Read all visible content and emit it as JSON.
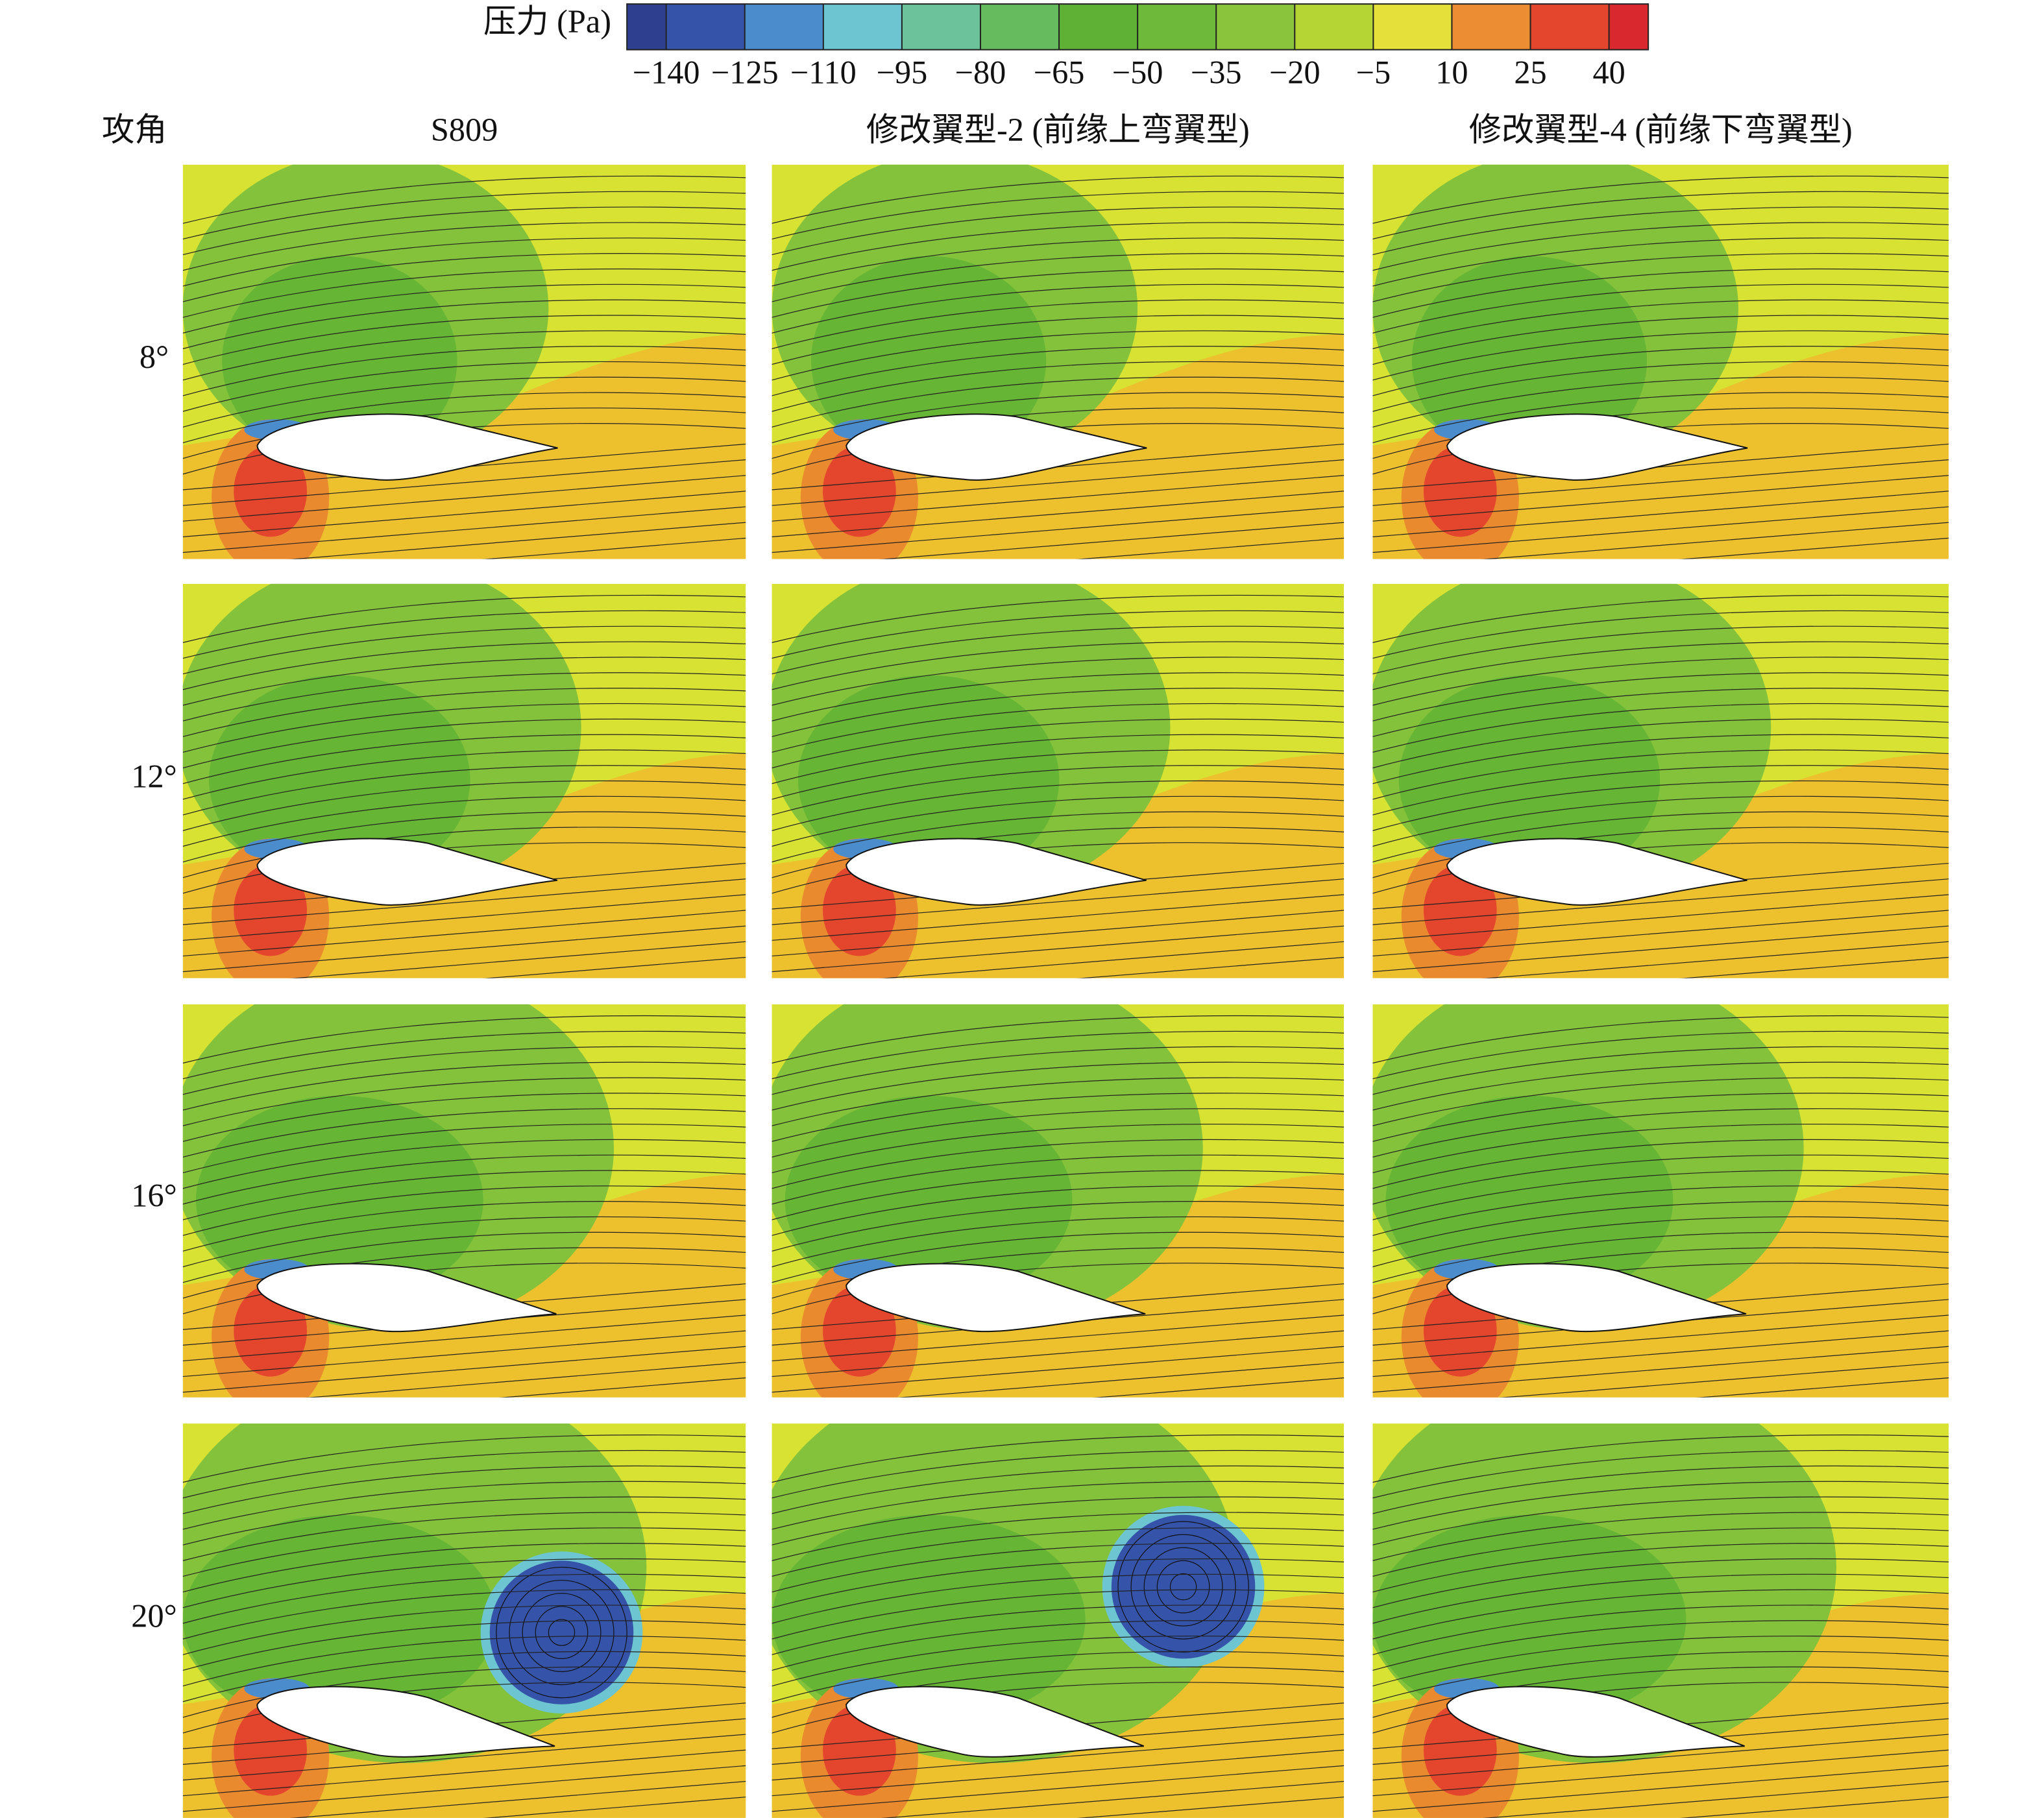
{
  "colorbar": {
    "title": "压力 (Pa)",
    "lim": [
      -147.5,
      47.5
    ],
    "ticks": [
      {
        "value": -140,
        "label": "−140"
      },
      {
        "value": -125,
        "label": "−125"
      },
      {
        "value": -110,
        "label": "−110"
      },
      {
        "value": -95,
        "label": "−95"
      },
      {
        "value": -80,
        "label": "−80"
      },
      {
        "value": -65,
        "label": "−65"
      },
      {
        "value": -50,
        "label": "−50"
      },
      {
        "value": -35,
        "label": "−35"
      },
      {
        "value": -20,
        "label": "−20"
      },
      {
        "value": -5,
        "label": "−5"
      },
      10,
      25,
      40
    ],
    "colors": [
      "#2e3f8f",
      "#3553a8",
      "#4b8ccd",
      "#6cc5d0",
      "#6cc39b",
      "#66bb5e",
      "#5fb135",
      "#6eb93a",
      "#8ac43c",
      "#b5d535",
      "#e6e03a",
      "#ec8c33",
      "#e4452d",
      "#d9292f"
    ]
  },
  "header": {
    "row_title": "攻角",
    "columns": [
      "S809",
      "修改翼型-2 (前缘上弯翼型)",
      "修改翼型-4 (前缘下弯翼型)"
    ]
  },
  "rows": [
    "8°",
    "12°",
    "16°",
    "20°"
  ]
}
